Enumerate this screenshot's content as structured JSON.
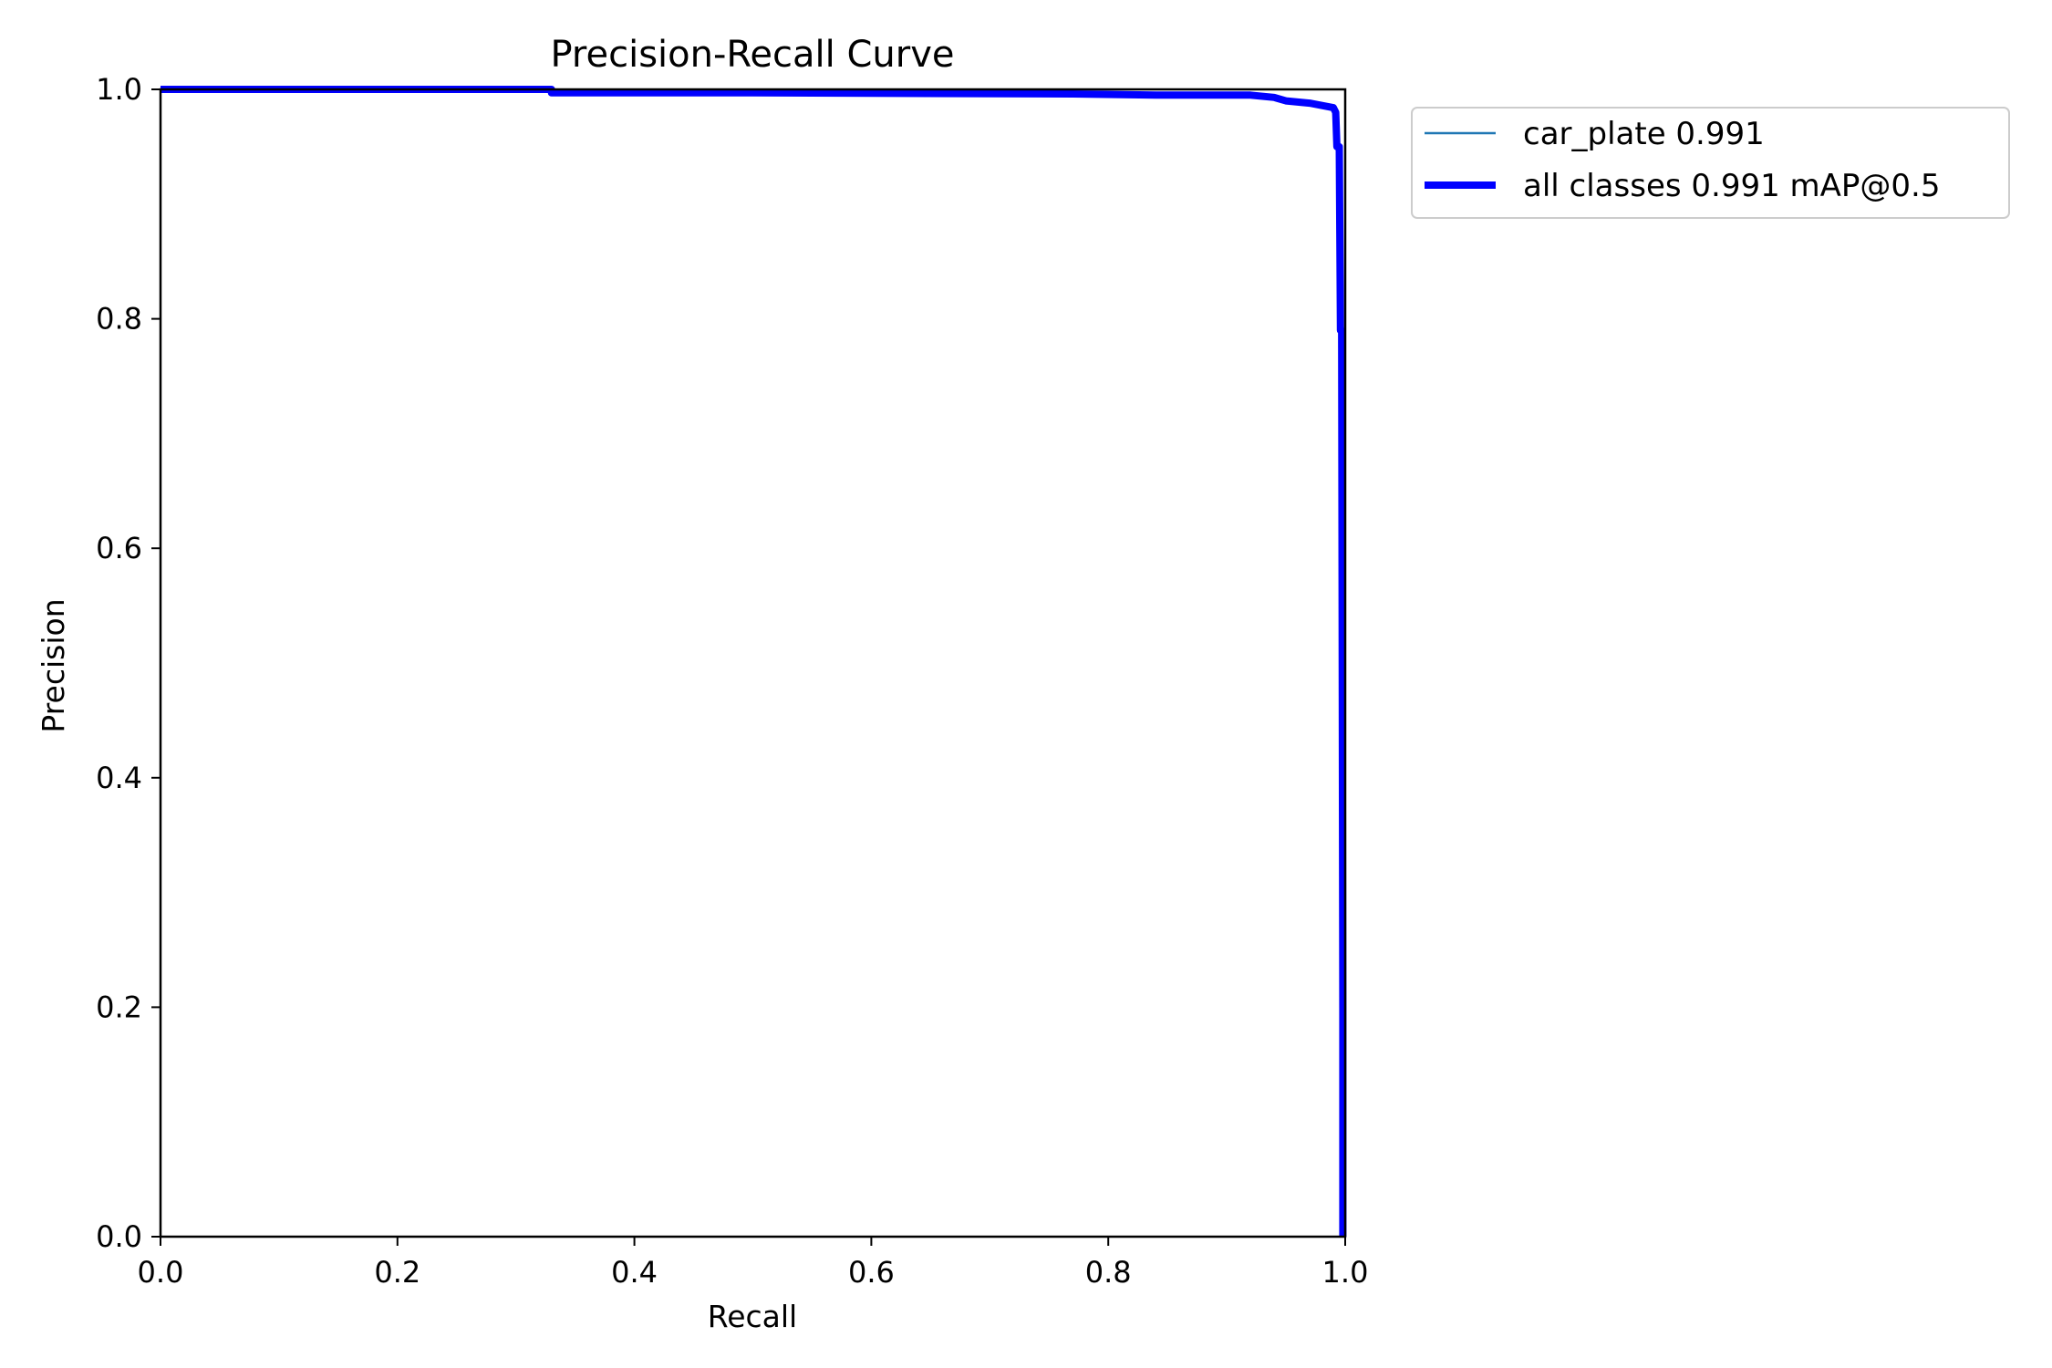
{
  "chart_data": {
    "type": "line",
    "title": "Precision-Recall Curve",
    "xlabel": "Recall",
    "ylabel": "Precision",
    "xlim": [
      0,
      1
    ],
    "ylim": [
      0,
      1
    ],
    "xticks": [
      "0.0",
      "0.2",
      "0.4",
      "0.6",
      "0.8",
      "1.0"
    ],
    "yticks": [
      "0.0",
      "0.2",
      "0.4",
      "0.6",
      "0.8",
      "1.0"
    ],
    "grid": false,
    "legend_position": "outside top-right",
    "series": [
      {
        "name": "car_plate 0.991",
        "color": "#1f77b4",
        "style": "thin",
        "x": [
          0.0,
          0.33,
          0.33,
          0.5,
          0.77,
          0.84,
          0.92,
          0.94,
          0.95,
          0.97,
          0.98,
          0.99,
          0.992,
          0.993,
          0.995,
          0.996,
          0.997,
          0.998,
          0.998
        ],
        "y": [
          1.0,
          1.0,
          0.997,
          0.997,
          0.996,
          0.995,
          0.995,
          0.993,
          0.99,
          0.988,
          0.986,
          0.984,
          0.98,
          0.95,
          0.95,
          0.79,
          0.79,
          0.2,
          0.0
        ]
      },
      {
        "name": "all classes 0.991 mAP@0.5",
        "color": "#0000ff",
        "style": "thick",
        "x": [
          0.0,
          0.33,
          0.33,
          0.5,
          0.77,
          0.84,
          0.92,
          0.94,
          0.95,
          0.97,
          0.98,
          0.99,
          0.992,
          0.993,
          0.995,
          0.996,
          0.997,
          0.998,
          0.998
        ],
        "y": [
          1.0,
          1.0,
          0.997,
          0.997,
          0.996,
          0.995,
          0.995,
          0.993,
          0.99,
          0.988,
          0.986,
          0.984,
          0.98,
          0.95,
          0.95,
          0.79,
          0.79,
          0.2,
          0.0
        ]
      }
    ]
  }
}
